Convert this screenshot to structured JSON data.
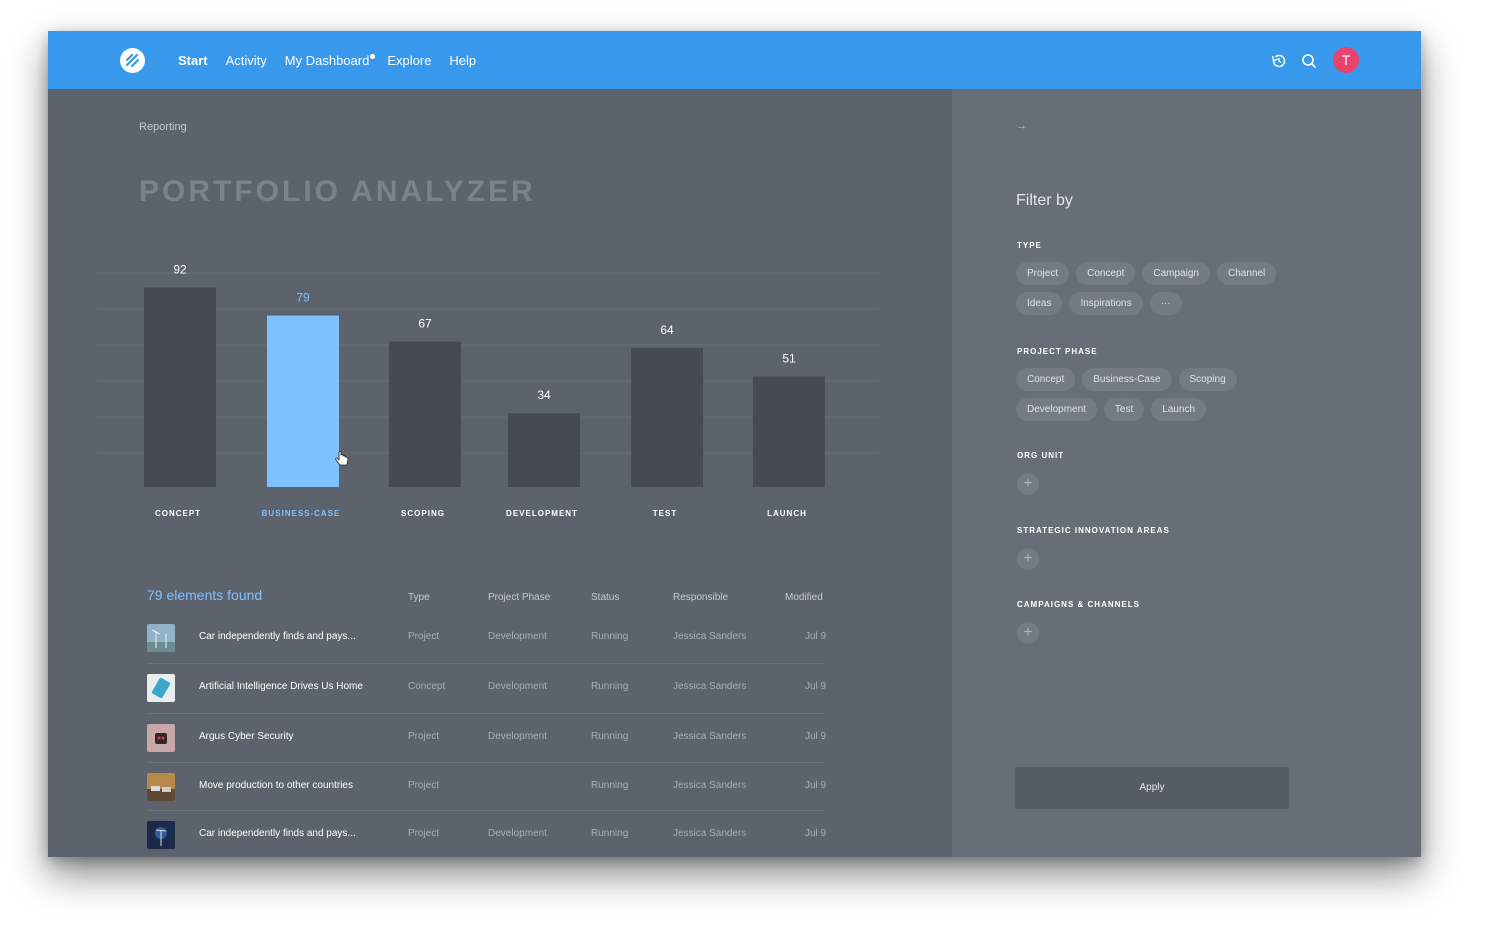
{
  "nav": {
    "items": [
      {
        "label": "Start",
        "active": true
      },
      {
        "label": "Activity",
        "active": false
      },
      {
        "label": "My Dashboard",
        "active": false,
        "has_dot": true
      },
      {
        "label": "Explore",
        "active": false
      },
      {
        "label": "Help",
        "active": false
      }
    ],
    "avatar_initial": "T",
    "avatar_color": "#e8436b",
    "icons": [
      "history-icon",
      "search-icon"
    ]
  },
  "colors": {
    "topbar": "#3898ec",
    "bar_default": "#464b53",
    "bar_selected": "#7dc1ff",
    "accent": "#7dc1ff"
  },
  "main": {
    "breadcrumb": "Reporting",
    "title": "PORTFOLIO ANALYZER"
  },
  "chart_data": {
    "type": "bar",
    "categories": [
      "CONCEPT",
      "BUSINESS-CASE",
      "SCOPING",
      "DEVELOPMENT",
      "TEST",
      "LAUNCH"
    ],
    "values": [
      92,
      79,
      67,
      34,
      64,
      51
    ],
    "selected_index": 1,
    "grid": true
  },
  "table": {
    "count_label": "79 elements found",
    "headers": [
      "Type",
      "Project Phase",
      "Status",
      "Responsible",
      "Modified"
    ],
    "rows": [
      {
        "name": "Car independently finds and pays...",
        "type": "Project",
        "phase": "Development",
        "status": "Running",
        "responsible": "Jessica Sanders",
        "modified": "Jul 9",
        "thumb": "wind-turbines"
      },
      {
        "name": "Artificial Intelligence Drives Us Home",
        "type": "Concept",
        "phase": "Development",
        "status": "Running",
        "responsible": "Jessica Sanders",
        "modified": "Jul 9",
        "thumb": "phone"
      },
      {
        "name": "Argus Cyber Security",
        "type": "Project",
        "phase": "Development",
        "status": "Running",
        "responsible": "Jessica Sanders",
        "modified": "Jul 9",
        "thumb": "robot"
      },
      {
        "name": "Move production to other countries",
        "type": "Project",
        "phase": "",
        "status": "Running",
        "responsible": "Jessica Sanders",
        "modified": "Jul 9",
        "thumb": "cars"
      },
      {
        "name": "Car independently finds and pays...",
        "type": "Project",
        "phase": "Development",
        "status": "Running",
        "responsible": "Jessica Sanders",
        "modified": "Jul 9",
        "thumb": "night-turbine"
      }
    ]
  },
  "sidebar": {
    "title": "Filter by",
    "sections": {
      "type": {
        "title": "TYPE",
        "chips_row1": [
          "Project",
          "Concept",
          "Campaign",
          "Channel"
        ],
        "chips_row2": [
          "Ideas",
          "Inspirations",
          "···"
        ]
      },
      "phase": {
        "title": "PROJECT PHASE",
        "chips_row1": [
          "Concept",
          "Business-Case",
          "Scoping"
        ],
        "chips_row2": [
          "Development",
          "Test",
          "Launch"
        ]
      },
      "org": {
        "title": "ORG UNIT"
      },
      "areas": {
        "title": "STRATEGIC INNOVATION AREAS"
      },
      "campaigns": {
        "title": "CAMPAIGNS & CHANNELS"
      }
    },
    "apply_label": "Apply"
  }
}
